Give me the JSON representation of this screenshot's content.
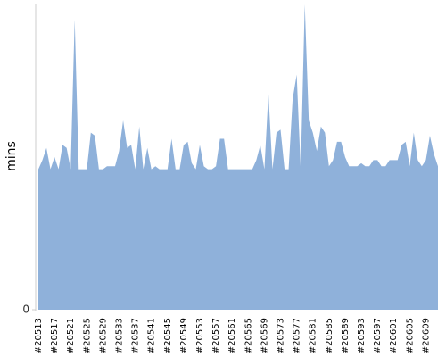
{
  "chart_data": {
    "type": "area",
    "y_label": "mins",
    "categories": [
      "#20513",
      null,
      null,
      null,
      "#20517",
      null,
      null,
      null,
      "#20521",
      null,
      null,
      null,
      "#20525",
      null,
      null,
      null,
      "#20529",
      null,
      null,
      null,
      "#20533",
      null,
      null,
      null,
      "#20537",
      null,
      null,
      null,
      "#20541",
      null,
      null,
      null,
      "#20545",
      null,
      null,
      null,
      "#20549",
      null,
      null,
      null,
      "#20553",
      null,
      null,
      null,
      "#20557",
      null,
      null,
      null,
      "#20561",
      null,
      null,
      null,
      "#20565",
      null,
      null,
      null,
      "#20569",
      null,
      null,
      null,
      "#20573",
      null,
      null,
      null,
      "#20577",
      null,
      null,
      null,
      "#20581",
      null,
      null,
      null,
      "#20585",
      null,
      null,
      null,
      "#20589",
      null,
      null,
      null,
      "#20593",
      null,
      null,
      null,
      "#20597",
      null,
      null,
      null,
      "#20601",
      null,
      null,
      null,
      "#20605",
      null,
      null,
      null,
      "#20609",
      null,
      null,
      null
    ],
    "values": [
      46,
      49,
      53,
      46,
      50,
      46,
      54,
      53,
      46,
      95,
      46,
      46,
      46,
      58,
      57,
      46,
      46,
      47,
      47,
      47,
      52,
      62,
      53,
      54,
      46,
      60,
      46,
      53,
      46,
      47,
      46,
      46,
      46,
      56,
      46,
      46,
      54,
      55,
      48,
      46,
      54,
      47,
      46,
      46,
      47,
      56,
      56,
      46,
      46,
      46,
      46,
      46,
      46,
      46,
      49,
      54,
      46,
      71,
      46,
      58,
      59,
      46,
      46,
      69,
      77,
      46,
      100,
      62,
      58,
      52,
      60,
      58,
      47,
      49,
      55,
      55,
      50,
      47,
      47,
      47,
      48,
      47,
      47,
      49,
      49,
      47,
      47,
      49,
      49,
      49,
      54,
      55,
      47,
      58,
      49,
      47,
      49,
      57,
      51,
      47
    ],
    "color": "#8fb1da",
    "ylim": [
      0,
      100
    ],
    "yticks": [
      0
    ]
  }
}
